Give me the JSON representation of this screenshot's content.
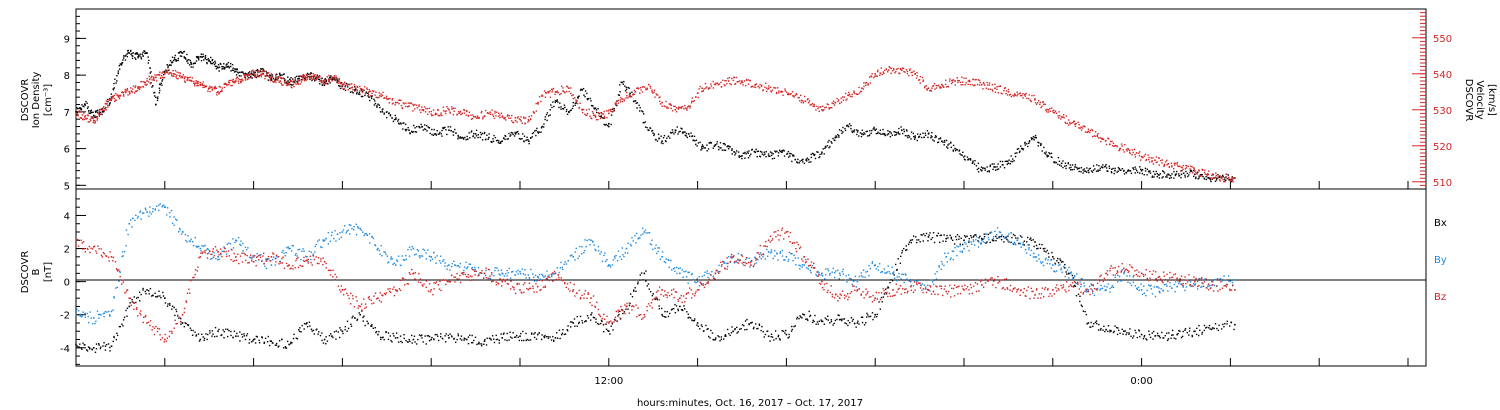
{
  "chart_data": [
    {
      "type": "scatter",
      "panel": "top",
      "ylabel_lines": [
        "DSCOVR",
        "Ion Density",
        "[cm⁻³]"
      ],
      "y2label_lines": [
        "DSCOVR",
        "Velocity",
        "[km/s]"
      ],
      "ylim": [
        4.9,
        9.8
      ],
      "y2lim": [
        508,
        558
      ],
      "yticks": [
        5,
        6,
        7,
        8,
        9
      ],
      "y2ticks": [
        510,
        520,
        530,
        540,
        550
      ],
      "series": [
        {
          "name": "",
          "axis": "left",
          "color": "#000000",
          "x": [
            0.0,
            0.2,
            0.4,
            0.6,
            0.8,
            1.0,
            1.2,
            1.4,
            1.6,
            1.8,
            2.0,
            2.2,
            2.4,
            2.6,
            2.8,
            3.0,
            3.2,
            3.4,
            3.6,
            3.8,
            4.0,
            4.2,
            4.4,
            4.6,
            4.8,
            5.0,
            5.2,
            5.4,
            5.6,
            5.8,
            6.0,
            6.3,
            6.6,
            6.9,
            7.2,
            7.5,
            7.8,
            8.1,
            8.4,
            8.7,
            9.0,
            9.3,
            9.6,
            9.9,
            10.2,
            10.5,
            10.8,
            11.1,
            11.4,
            11.7,
            12.0,
            12.3,
            12.6,
            12.9,
            13.2,
            13.5,
            13.8,
            14.1,
            14.4,
            14.7,
            15.0,
            15.3,
            15.6,
            15.9,
            16.2,
            16.5,
            16.8,
            17.1,
            17.4,
            17.7,
            18.0,
            18.3,
            18.6,
            18.9,
            19.2,
            19.5,
            19.8,
            20.1,
            20.4,
            20.7,
            21.0,
            21.3,
            21.6,
            21.9,
            22.2,
            22.5,
            22.8,
            23.1,
            23.4,
            23.7,
            24.0,
            24.3,
            24.6,
            24.9,
            25.2,
            25.5,
            25.8,
            26.1
          ],
          "y": [
            7.0,
            7.2,
            6.9,
            7.0,
            7.4,
            8.3,
            8.6,
            8.5,
            8.6,
            7.2,
            8.1,
            8.4,
            8.6,
            8.3,
            8.5,
            8.4,
            8.2,
            8.3,
            8.1,
            8.0,
            8.0,
            8.1,
            7.9,
            8.0,
            7.8,
            7.9,
            8.0,
            7.9,
            7.8,
            7.9,
            7.7,
            7.6,
            7.4,
            7.0,
            6.8,
            6.5,
            6.6,
            6.4,
            6.5,
            6.3,
            6.4,
            6.3,
            6.2,
            6.4,
            6.2,
            6.6,
            7.3,
            7.0,
            7.6,
            7.1,
            6.6,
            7.8,
            7.3,
            6.5,
            6.2,
            6.5,
            6.4,
            6.0,
            6.1,
            6.0,
            5.8,
            5.9,
            5.8,
            5.9,
            5.7,
            5.7,
            5.9,
            6.3,
            6.6,
            6.4,
            6.5,
            6.4,
            6.5,
            6.3,
            6.4,
            6.2,
            6.0,
            5.7,
            5.4,
            5.5,
            5.6,
            6.0,
            6.3,
            5.8,
            5.6,
            5.5,
            5.4,
            5.5,
            5.4,
            5.4,
            5.4,
            5.3,
            5.3,
            5.3,
            5.3,
            5.2,
            5.2,
            5.2
          ]
        },
        {
          "name": "",
          "axis": "right",
          "color": "#d42626",
          "x": [
            0.0,
            0.2,
            0.4,
            0.6,
            0.8,
            1.0,
            1.2,
            1.4,
            1.6,
            1.8,
            2.0,
            2.2,
            2.4,
            2.6,
            2.8,
            3.0,
            3.2,
            3.4,
            3.6,
            3.8,
            4.0,
            4.2,
            4.4,
            4.6,
            4.8,
            5.0,
            5.2,
            5.4,
            5.6,
            5.8,
            6.0,
            6.3,
            6.6,
            6.9,
            7.2,
            7.5,
            7.8,
            8.1,
            8.4,
            8.7,
            9.0,
            9.3,
            9.6,
            9.9,
            10.2,
            10.5,
            10.8,
            11.1,
            11.4,
            11.7,
            12.0,
            12.3,
            12.6,
            12.9,
            13.2,
            13.5,
            13.8,
            14.1,
            14.4,
            14.7,
            15.0,
            15.3,
            15.6,
            15.9,
            16.2,
            16.5,
            16.8,
            17.1,
            17.4,
            17.7,
            18.0,
            18.3,
            18.6,
            18.9,
            19.2,
            19.5,
            19.8,
            20.1,
            20.4,
            20.7,
            21.0,
            21.3,
            21.6,
            21.9,
            22.2,
            22.5,
            22.8,
            23.1,
            23.4,
            23.7,
            24.0,
            24.3,
            24.6,
            24.9,
            25.2,
            25.5,
            25.8,
            26.1
          ],
          "y": [
            529,
            528,
            527,
            530,
            533,
            534,
            535,
            536,
            538,
            539,
            540,
            540,
            539,
            538,
            537,
            536,
            535,
            537,
            538,
            539,
            540,
            540,
            539,
            538,
            537,
            538,
            539,
            539,
            538,
            539,
            537,
            536,
            535,
            534,
            532,
            531,
            530,
            529,
            530,
            529,
            528,
            529,
            528,
            527,
            527,
            534,
            535,
            536,
            530,
            528,
            529,
            533,
            535,
            537,
            532,
            530,
            531,
            536,
            537,
            538,
            538,
            537,
            536,
            535,
            534,
            532,
            530,
            532,
            534,
            536,
            540,
            541,
            541,
            540,
            536,
            537,
            538,
            538,
            537,
            536,
            535,
            534,
            533,
            530,
            528,
            526,
            524,
            522,
            520,
            519,
            517,
            516,
            515,
            514,
            513,
            512,
            511,
            511
          ]
        }
      ]
    },
    {
      "type": "scatter",
      "panel": "bottom",
      "ylabel_lines": [
        "DSCOVR",
        "B",
        "[nT]"
      ],
      "ylim": [
        -5.1,
        5.6
      ],
      "yticks": [
        -4,
        -2,
        0,
        2,
        4
      ],
      "zero_line": true,
      "xtick_labels": [
        {
          "x": 12,
          "label": "12:00"
        },
        {
          "x": 24,
          "label": "0:00"
        }
      ],
      "xlabel": "hours:minutes, Oct. 16, 2017 – Oct. 17, 2017",
      "series": [
        {
          "name": "Bx",
          "color": "#000000",
          "x": [
            0.0,
            0.4,
            0.8,
            1.2,
            1.6,
            2.0,
            2.4,
            2.8,
            3.2,
            3.6,
            4.0,
            4.4,
            4.8,
            5.2,
            5.6,
            6.0,
            6.4,
            6.8,
            7.2,
            7.6,
            8.0,
            8.4,
            8.8,
            9.2,
            9.6,
            10.0,
            10.4,
            10.8,
            11.2,
            11.6,
            12.0,
            12.4,
            12.8,
            13.2,
            13.6,
            14.0,
            14.4,
            14.8,
            15.2,
            15.6,
            16.0,
            16.4,
            16.8,
            17.2,
            17.6,
            18.0,
            18.4,
            18.8,
            19.2,
            19.6,
            20.0,
            20.4,
            20.8,
            21.2,
            21.6,
            22.0,
            22.4,
            22.8,
            23.2,
            23.6,
            24.0,
            24.4,
            24.8,
            25.2,
            25.6,
            26.1
          ],
          "y": [
            -3.8,
            -4.0,
            -3.9,
            -1.5,
            -0.5,
            -1.0,
            -2.5,
            -3.5,
            -3.0,
            -3.3,
            -3.5,
            -3.6,
            -3.8,
            -2.5,
            -3.5,
            -3.0,
            -2.0,
            -3.2,
            -3.4,
            -3.5,
            -3.5,
            -3.4,
            -3.5,
            -3.6,
            -3.4,
            -3.3,
            -3.2,
            -3.4,
            -2.5,
            -2.0,
            -3.0,
            -1.5,
            0.5,
            -2.0,
            -1.5,
            -2.5,
            -3.5,
            -3.0,
            -2.5,
            -3.3,
            -3.2,
            -2.0,
            -2.4,
            -2.3,
            -2.5,
            -2.0,
            0.5,
            2.5,
            2.7,
            2.6,
            2.5,
            2.6,
            2.7,
            2.5,
            2.4,
            1.5,
            0.5,
            -2.5,
            -2.9,
            -3.0,
            -3.2,
            -3.3,
            -3.2,
            -3.0,
            -2.8,
            -2.6
          ]
        },
        {
          "name": "By",
          "color": "#1f8be0",
          "x": [
            0.0,
            0.4,
            0.8,
            1.2,
            1.6,
            2.0,
            2.4,
            2.8,
            3.2,
            3.6,
            4.0,
            4.4,
            4.8,
            5.2,
            5.6,
            6.0,
            6.4,
            6.8,
            7.2,
            7.6,
            8.0,
            8.4,
            8.8,
            9.2,
            9.6,
            10.0,
            10.4,
            10.8,
            11.2,
            11.6,
            12.0,
            12.4,
            12.8,
            13.2,
            13.6,
            14.0,
            14.4,
            14.8,
            15.2,
            15.6,
            16.0,
            16.4,
            16.8,
            17.2,
            17.6,
            18.0,
            18.4,
            18.8,
            19.2,
            19.6,
            20.0,
            20.4,
            20.8,
            21.2,
            21.6,
            22.0,
            22.4,
            22.8,
            23.2,
            23.6,
            24.0,
            24.4,
            24.8,
            25.2,
            25.6,
            26.1
          ],
          "y": [
            -2.0,
            -2.2,
            -1.8,
            3.5,
            4.2,
            4.5,
            3.0,
            2.0,
            1.5,
            2.5,
            1.5,
            1.0,
            2.0,
            1.5,
            2.5,
            3.0,
            3.2,
            2.0,
            1.0,
            2.0,
            1.5,
            1.0,
            0.8,
            0.5,
            0.5,
            0.6,
            0.3,
            0.5,
            1.5,
            2.5,
            1.0,
            2.0,
            3.0,
            1.5,
            0.5,
            0.0,
            0.5,
            1.5,
            1.2,
            1.8,
            1.5,
            1.0,
            0.5,
            0.5,
            0.0,
            1.0,
            0.5,
            0.0,
            -0.5,
            1.5,
            2.0,
            2.5,
            3.0,
            2.5,
            1.5,
            1.0,
            0.5,
            -0.5,
            -0.5,
            0.5,
            -0.5,
            -0.6,
            -0.3,
            -0.2,
            0.0,
            0.1
          ]
        },
        {
          "name": "Bz",
          "color": "#d42626",
          "x": [
            0.0,
            0.4,
            0.8,
            1.2,
            1.6,
            2.0,
            2.4,
            2.8,
            3.2,
            3.6,
            4.0,
            4.4,
            4.8,
            5.2,
            5.6,
            6.0,
            6.4,
            6.8,
            7.2,
            7.6,
            8.0,
            8.4,
            8.8,
            9.2,
            9.6,
            10.0,
            10.4,
            10.8,
            11.2,
            11.6,
            12.0,
            12.4,
            12.8,
            13.2,
            13.6,
            14.0,
            14.4,
            14.8,
            15.2,
            15.6,
            16.0,
            16.4,
            16.8,
            17.2,
            17.6,
            18.0,
            18.4,
            18.8,
            19.2,
            19.6,
            20.0,
            20.4,
            20.8,
            21.2,
            21.6,
            22.0,
            22.4,
            22.8,
            23.2,
            23.6,
            24.0,
            24.4,
            24.8,
            25.2,
            25.6,
            26.1
          ],
          "y": [
            2.2,
            2.1,
            1.5,
            -1.0,
            -2.5,
            -3.5,
            -2.0,
            1.5,
            1.8,
            1.5,
            1.2,
            1.5,
            1.0,
            1.3,
            1.2,
            -0.5,
            -1.5,
            -1.0,
            -0.5,
            0.5,
            -0.5,
            0.0,
            0.3,
            0.5,
            0.0,
            -0.5,
            -0.3,
            0.5,
            -0.5,
            -1.0,
            -2.5,
            -1.5,
            -2.0,
            -0.5,
            -1.0,
            -0.5,
            0.5,
            1.5,
            1.0,
            2.5,
            3.0,
            1.5,
            0.0,
            -1.0,
            -0.5,
            -1.0,
            -0.5,
            -0.3,
            -0.5,
            -0.6,
            -0.5,
            -0.2,
            0.0,
            -0.5,
            -0.8,
            -0.5,
            -0.2,
            -0.6,
            0.5,
            0.8,
            0.5,
            0.3,
            0.2,
            0.0,
            -0.2,
            -0.5
          ]
        }
      ]
    }
  ]
}
